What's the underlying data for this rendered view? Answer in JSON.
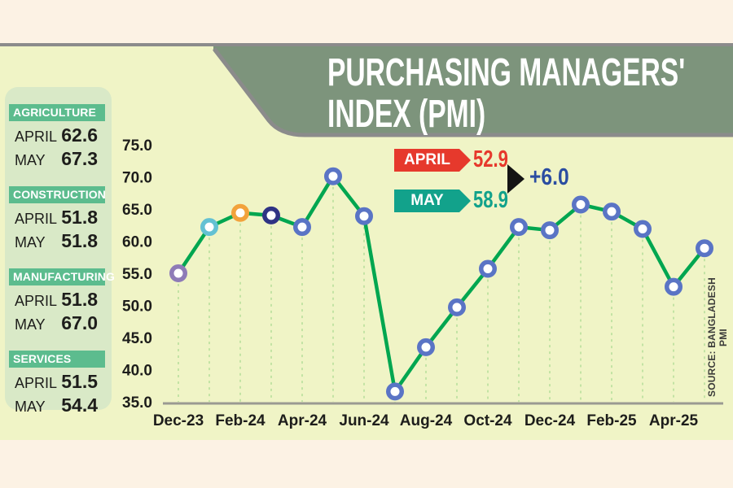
{
  "title": {
    "line1": "PURCHASING MANAGERS'",
    "line2": "INDEX (PMI)"
  },
  "source_note": "SOURCE: BANGLADESH PMI",
  "sidebar": {
    "sections": [
      {
        "name": "AGRICULTURE",
        "rows": [
          {
            "label": "APRIL",
            "value": "62.6"
          },
          {
            "label": "MAY",
            "value": "67.3"
          }
        ]
      },
      {
        "name": "CONSTRUCTION",
        "rows": [
          {
            "label": "APRIL",
            "value": "51.8"
          },
          {
            "label": "MAY",
            "value": "51.8"
          }
        ]
      },
      {
        "name": "MANUFACTURING",
        "rows": [
          {
            "label": "APRIL",
            "value": "51.8"
          },
          {
            "label": "MAY",
            "value": "67.0"
          }
        ]
      },
      {
        "name": "SERVICES",
        "rows": [
          {
            "label": "APRIL",
            "value": "51.5"
          },
          {
            "label": "MAY",
            "value": "54.4"
          }
        ]
      }
    ]
  },
  "legend": {
    "april_label": "APRIL",
    "april_value": "52.9",
    "may_label": "MAY",
    "may_value": "58.9",
    "delta": "+6.0"
  },
  "colors": {
    "accent_red": "#e6392c",
    "accent_teal": "#12a28b",
    "delta_blue": "#2b4da1",
    "band_sage": "#7d947c",
    "border_gray": "#8b8b8b",
    "panel_green": "#d9e9c7",
    "section_header_green": "#5cbc8e",
    "background_yellow": "#f0f4c6",
    "background_cream": "#fcf2e4"
  },
  "chart_data": {
    "type": "line",
    "title": "PURCHASING MANAGERS' INDEX (PMI)",
    "x": [
      "Dec-23",
      "Jan-24",
      "Feb-24",
      "Mar-24",
      "Apr-24",
      "May-24",
      "Jun-24",
      "Jul-24",
      "Aug-24",
      "Sep-24",
      "Oct-24",
      "Nov-24",
      "Dec-24",
      "Jan-25",
      "Feb-25",
      "Mar-25",
      "Apr-25",
      "May-25"
    ],
    "values": [
      55.0,
      62.2,
      64.4,
      64.0,
      62.2,
      70.1,
      63.9,
      36.6,
      43.5,
      49.7,
      55.7,
      62.2,
      61.7,
      65.7,
      64.6,
      61.9,
      52.9,
      58.9
    ],
    "x_tick_labels": [
      "Dec-23",
      "Feb-24",
      "Apr-24",
      "Jun-24",
      "Aug-24",
      "Oct-24",
      "Dec-24",
      "Feb-25",
      "Apr-25"
    ],
    "yticks": [
      "75.0",
      "70.0",
      "65.0",
      "60.0",
      "55.0",
      "50.0",
      "45.0",
      "40.0",
      "35.0"
    ],
    "ylim": [
      35,
      75
    ],
    "xlabel": "",
    "ylabel": "",
    "grid": "vertical dashed drop-line under every data point",
    "legend_position": "top-center",
    "line_color": "#00a650",
    "gridline_color": "#c3e3a4",
    "axis_color": "#9a9a92",
    "marker_colors": {
      "Dec-23": "#8e7bb7",
      "Jan-24": "#63c1d3",
      "Feb-24": "#f2a23c",
      "Mar-24": "#2f3384",
      "default": "#5a74c5"
    }
  }
}
